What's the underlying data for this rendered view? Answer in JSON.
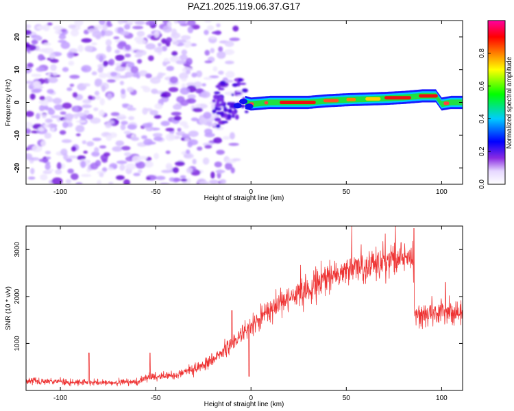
{
  "title": "PAZ1.2025.119.06.37.G17",
  "chart_data": [
    {
      "type": "heatmap",
      "xlabel": "Height of straight line (km)",
      "ylabel": "Frequency (Hz)",
      "xlim": [
        -118,
        111
      ],
      "ylim": [
        -25,
        25
      ],
      "xticks": [
        -100,
        -50,
        0,
        50,
        100
      ],
      "yticks": [
        -20,
        -10,
        0,
        10,
        20
      ],
      "colorbar": {
        "label": "Normalized spectral amplitude",
        "range": [
          0,
          1
        ],
        "ticks": [
          "0.0",
          "0.2",
          "0.4",
          "0.6",
          "0.8"
        ],
        "colors": [
          "#ffffff",
          "#e0d0ff",
          "#8000ff",
          "#0000ff",
          "#00c0ff",
          "#00ff00",
          "#ffff00",
          "#ff8000",
          "#ff0000",
          "#ff00a0"
        ]
      },
      "ridge": {
        "x": [
          -3,
          0,
          10,
          20,
          30,
          40,
          50,
          60,
          70,
          80,
          90,
          97,
          100,
          105,
          111
        ],
        "freq": [
          0,
          -0.5,
          0,
          0,
          0,
          0.5,
          0.8,
          1,
          1.2,
          1.5,
          2,
          2,
          -0.5,
          0,
          0
        ]
      },
      "noise_region_x": [
        -118,
        -5
      ]
    },
    {
      "type": "line",
      "xlabel": "Height of straight line (km)",
      "ylabel": "SNR (10 * v/v)",
      "xlim": [
        -118,
        111
      ],
      "ylim": [
        0,
        3500
      ],
      "xticks": [
        -100,
        -50,
        0,
        50,
        100
      ],
      "yticks": [
        1000,
        2000,
        3000
      ],
      "color": "#ee3333",
      "trend": {
        "x": [
          -118,
          -100,
          -80,
          -60,
          -55,
          -40,
          -30,
          -20,
          -10,
          0,
          10,
          20,
          30,
          40,
          50,
          60,
          70,
          80,
          85,
          86,
          90,
          100,
          111
        ],
        "y": [
          200,
          180,
          170,
          180,
          260,
          330,
          460,
          650,
          1000,
          1350,
          1700,
          1950,
          2150,
          2380,
          2550,
          2680,
          2780,
          2850,
          2880,
          1620,
          1600,
          1650,
          1700
        ]
      },
      "spikes": {
        "x": [
          -85,
          -53,
          -10,
          -1,
          85.5,
          102
        ],
        "y": [
          800,
          800,
          1700,
          300,
          3450,
          2300
        ]
      }
    }
  ]
}
